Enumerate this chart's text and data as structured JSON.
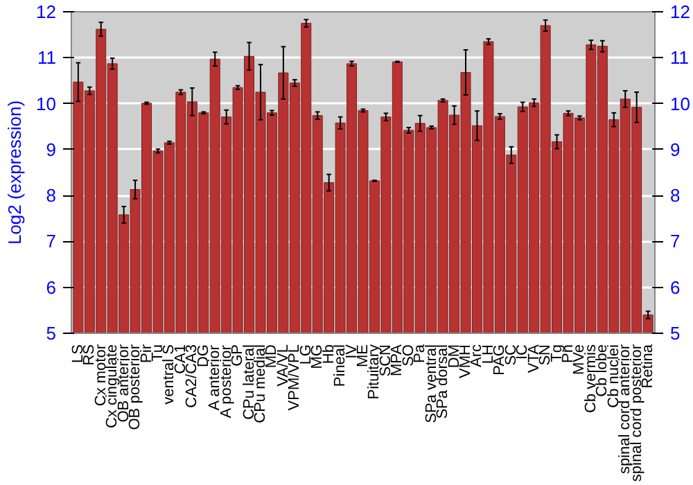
{
  "chart_data": {
    "type": "bar",
    "ylabel": "Log2 (expression)",
    "categories": [
      "LS",
      "RS",
      "Cx motor",
      "Cx cingulate",
      "OB anterior",
      "OB posterior",
      "Pir",
      "Tu",
      "ventral S",
      "CA1",
      "CA2/CA3",
      "DG",
      "A anterior",
      "A posterior",
      "GP",
      "CPu lateral",
      "CPu medial",
      "MD",
      "VA/VL",
      "VPM/VPL",
      "LG",
      "MG",
      "Hb",
      "Pineal",
      "IV",
      "ME",
      "Pituitary",
      "SCN",
      "MPA",
      "SO",
      "Pa",
      "SPa ventral",
      "SPa dorsal",
      "DM",
      "VMH",
      "Arc",
      "LH",
      "PAG",
      "SC",
      "IC",
      "VTA",
      "SN",
      "Tg",
      "Pn",
      "MVe",
      "Cb vermis",
      "Cb lobe",
      "Cb nuclei",
      "spinal cord anterior",
      "spinal cord posterior",
      "Retina"
    ],
    "values": [
      10.47,
      10.28,
      11.62,
      10.87,
      7.58,
      8.13,
      10.01,
      8.97,
      9.15,
      10.25,
      10.04,
      9.8,
      10.97,
      9.71,
      10.35,
      11.03,
      10.25,
      9.8,
      10.67,
      10.45,
      11.75,
      9.74,
      8.28,
      9.58,
      10.87,
      9.85,
      8.32,
      9.71,
      10.91,
      9.42,
      9.57,
      9.48,
      10.07,
      9.75,
      10.68,
      9.52,
      11.35,
      9.72,
      8.88,
      9.93,
      10.02,
      11.7,
      9.17,
      9.79,
      9.69,
      11.28,
      11.25,
      9.65,
      10.1,
      9.92,
      5.4
    ],
    "errors": [
      0.42,
      0.08,
      0.15,
      0.12,
      0.18,
      0.2,
      0.02,
      0.04,
      0.03,
      0.05,
      0.3,
      0.02,
      0.15,
      0.15,
      0.04,
      0.3,
      0.6,
      0.05,
      0.57,
      0.07,
      0.08,
      0.08,
      0.18,
      0.13,
      0.05,
      0.03,
      0.01,
      0.08,
      0.01,
      0.06,
      0.17,
      0.03,
      0.03,
      0.2,
      0.49,
      0.32,
      0.06,
      0.06,
      0.18,
      0.1,
      0.08,
      0.12,
      0.15,
      0.05,
      0.04,
      0.1,
      0.12,
      0.15,
      0.18,
      0.33,
      0.08
    ],
    "color": "#b83232",
    "ylim": [
      5,
      12
    ],
    "yticks": [
      5,
      6,
      7,
      8,
      9,
      10,
      11,
      12
    ],
    "y2lim": [
      5,
      12
    ],
    "y2ticks": [
      5,
      6,
      7,
      8,
      9,
      10,
      11,
      12
    ],
    "grid": "y"
  }
}
